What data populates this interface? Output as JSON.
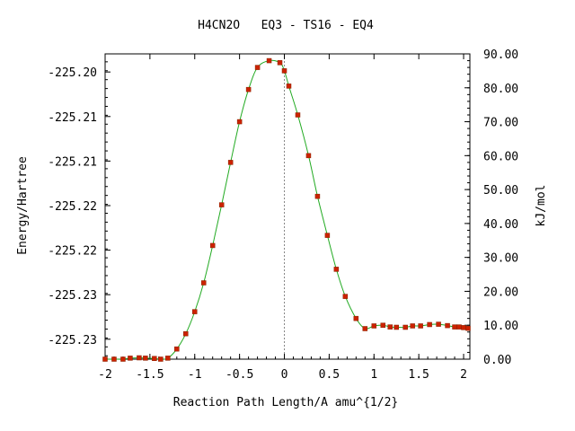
{
  "chart_data": {
    "type": "line",
    "title": "H4CN2O   EQ3 - TS16 - EQ4",
    "xlabel": "Reaction Path Length/A amu^{1/2}",
    "ylabel_left": "Energy/Hartree",
    "ylabel_right": "kJ/mol",
    "xlim": [
      -2.0,
      2.07
    ],
    "ylim_kjmol": [
      0,
      90
    ],
    "x_ticks": [
      "-2",
      "-1.5",
      "-1",
      "-0.5",
      "0",
      "0.5",
      "1",
      "1.5",
      "2"
    ],
    "x_tick_values": [
      -2,
      -1.5,
      -1,
      -0.5,
      0,
      0.5,
      1,
      1.5,
      2
    ],
    "left_tick_labels": [
      "-225.20",
      "-225.21",
      "-225.21",
      "-225.22",
      "-225.22",
      "-225.23",
      "-225.23"
    ],
    "left_tick_kjmol": [
      84.66,
      71.53,
      58.4,
      45.27,
      32.14,
      19.01,
      5.88
    ],
    "right_tick_labels": [
      "0.00",
      "10.00",
      "20.00",
      "30.00",
      "40.00",
      "50.00",
      "60.00",
      "70.00",
      "80.00",
      "90.00"
    ],
    "right_tick_values": [
      0,
      10,
      20,
      30,
      40,
      50,
      60,
      70,
      80,
      90
    ],
    "ts_x": 0.0,
    "curve_color": "#22aa22",
    "point_color": "#cc2200",
    "series": [
      {
        "x": [
          -2.0,
          -1.9,
          -1.8,
          -1.72,
          -1.62,
          -1.55,
          -1.45,
          -1.38,
          -1.3,
          -1.2,
          -1.1,
          -1.0,
          -0.9,
          -0.8,
          -0.7,
          -0.6,
          -0.5,
          -0.4,
          -0.3,
          -0.17,
          -0.05,
          0.0,
          0.05,
          0.15,
          0.27,
          0.37,
          0.48,
          0.58,
          0.68,
          0.8,
          0.9,
          1.0,
          1.1,
          1.18,
          1.25,
          1.35,
          1.43,
          1.52,
          1.62,
          1.72,
          1.82,
          1.9,
          1.95,
          2.0,
          2.05
        ],
        "y": [
          0.0,
          0.0,
          0.0,
          0.3,
          0.4,
          0.3,
          0.2,
          0.0,
          0.3,
          3.0,
          7.5,
          14.0,
          22.5,
          33.5,
          45.5,
          58.0,
          70.0,
          79.5,
          86.0,
          88.0,
          87.4,
          85.0,
          80.5,
          72.0,
          60.0,
          48.0,
          36.5,
          26.5,
          18.5,
          12.0,
          9.0,
          9.8,
          10.0,
          9.5,
          9.4,
          9.4,
          9.8,
          9.8,
          10.2,
          10.3,
          9.9,
          9.5,
          9.5,
          9.3,
          9.1
        ]
      }
    ]
  }
}
